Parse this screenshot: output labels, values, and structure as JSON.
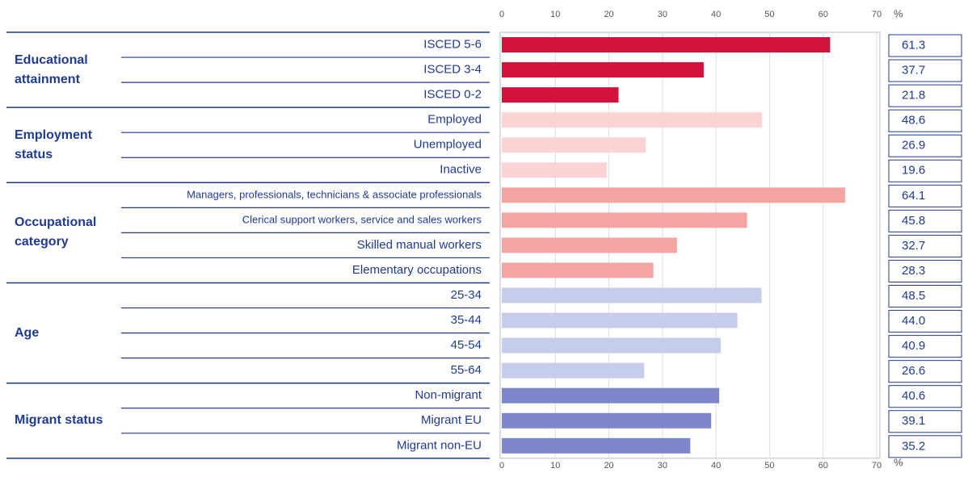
{
  "chart_data": {
    "type": "bar",
    "orientation": "horizontal",
    "x_unit": "%",
    "xlim": [
      0,
      70
    ],
    "xticks": [
      0,
      10,
      20,
      30,
      40,
      50,
      60,
      70
    ],
    "grid": true,
    "groups": [
      {
        "name": "Educational attainment",
        "color": "#d2123d",
        "categories": [
          "ISCED 5-6",
          "ISCED 3-4",
          "ISCED 0-2"
        ],
        "values": [
          61.3,
          37.7,
          21.8
        ],
        "value_labels": [
          "61.3",
          "37.7",
          "21.8"
        ]
      },
      {
        "name": "Employment status",
        "color": "#fbd3d4",
        "categories": [
          "Employed",
          "Unemployed",
          "Inactive"
        ],
        "values": [
          48.6,
          26.9,
          19.6
        ],
        "value_labels": [
          "48.6",
          "26.9",
          "19.6"
        ]
      },
      {
        "name": "Occupational category",
        "color": "#f5a4a2",
        "categories": [
          "Managers, professionals, technicians & associate professionals",
          "Clerical support workers, service and sales workers",
          "Skilled manual workers",
          "Elementary occupations"
        ],
        "values": [
          64.1,
          45.8,
          32.7,
          28.3
        ],
        "value_labels": [
          "64.1",
          "45.8",
          "32.7",
          "28.3"
        ]
      },
      {
        "name": "Age",
        "color": "#c5cdea",
        "categories": [
          "25-34",
          "35-44",
          "45-54",
          "55-64"
        ],
        "values": [
          48.5,
          44.0,
          40.9,
          26.6
        ],
        "value_labels": [
          "48.5",
          "44.0",
          "40.9",
          "26.6"
        ]
      },
      {
        "name": "Migrant status",
        "color": "#7e87c9",
        "categories": [
          "Non-migrant",
          "Migrant EU",
          "Migrant non-EU"
        ],
        "values": [
          40.6,
          39.1,
          35.2
        ],
        "value_labels": [
          "40.6",
          "39.1",
          "35.2"
        ]
      }
    ]
  }
}
